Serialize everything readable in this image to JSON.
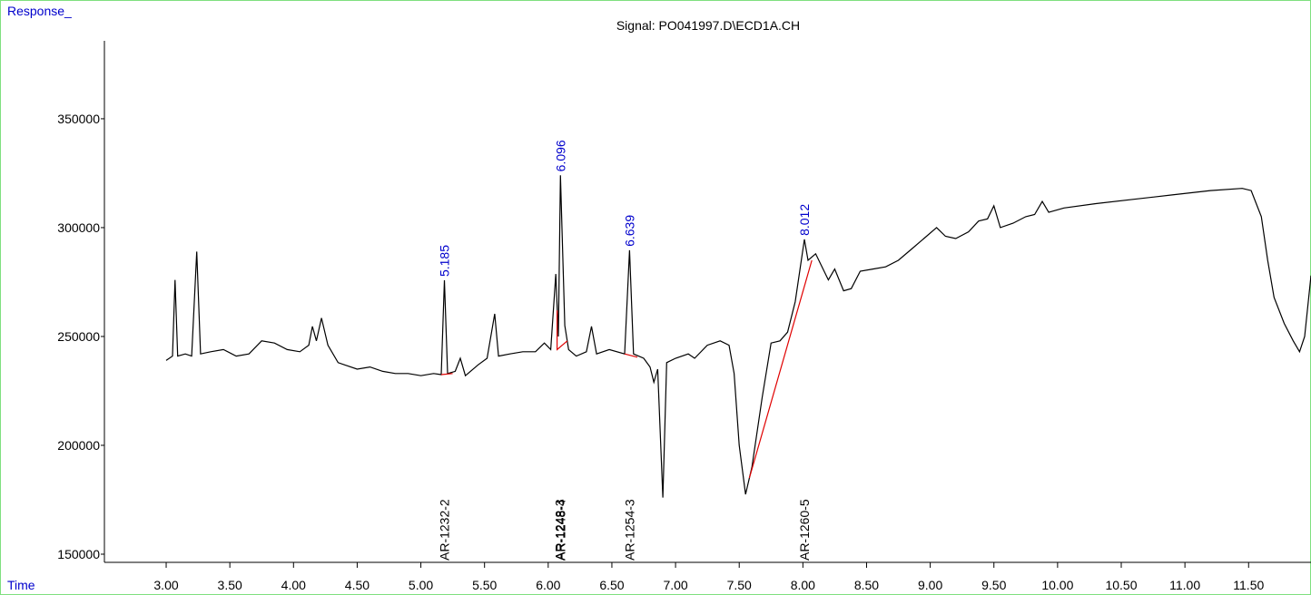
{
  "chart_data": {
    "type": "line",
    "title": "Signal: PO041997.D\\ECD1A.CH",
    "ylabel": "Response_",
    "xlabel": "Time",
    "xlim": [
      2.515,
      11.99
    ],
    "ylim": [
      146250,
      385800
    ],
    "xticks": [
      {
        "value": 3,
        "label": "3.00"
      },
      {
        "value": 3.5,
        "label": "3.50"
      },
      {
        "value": 4,
        "label": "4.00"
      },
      {
        "value": 4.5,
        "label": "4.50"
      },
      {
        "value": 5,
        "label": "5.00"
      },
      {
        "value": 5.5,
        "label": "5.50"
      },
      {
        "value": 6,
        "label": "6.00"
      },
      {
        "value": 6.5,
        "label": "6.50"
      },
      {
        "value": 7,
        "label": "7.00"
      },
      {
        "value": 7.5,
        "label": "7.50"
      },
      {
        "value": 8,
        "label": "8.00"
      },
      {
        "value": 8.5,
        "label": "8.50"
      },
      {
        "value": 9,
        "label": "9.00"
      },
      {
        "value": 9.5,
        "label": "9.50"
      },
      {
        "value": 10,
        "label": "10.00"
      },
      {
        "value": 10.5,
        "label": "10.50"
      },
      {
        "value": 11,
        "label": "11.00"
      },
      {
        "value": 11.5,
        "label": "11.50"
      }
    ],
    "yticks": [
      150000,
      200000,
      250000,
      300000,
      350000
    ],
    "series": [
      {
        "color": "#000000",
        "x": [
          3.0,
          3.05,
          3.07,
          3.09,
          3.15,
          3.2,
          3.24,
          3.27,
          3.35,
          3.45,
          3.55,
          3.65,
          3.75,
          3.85,
          3.95,
          4.05,
          4.12,
          4.148,
          4.18,
          4.22,
          4.27,
          4.35,
          4.5,
          4.6,
          4.7,
          4.8,
          4.9,
          5.0,
          5.1,
          5.16,
          5.185,
          5.21,
          5.27,
          5.31,
          5.35,
          5.45,
          5.52,
          5.58,
          5.61,
          5.7,
          5.8,
          5.9,
          5.97,
          6.02,
          6.06,
          6.08,
          6.096,
          6.13,
          6.16,
          6.22,
          6.3,
          6.34,
          6.38,
          6.48,
          6.6,
          6.639,
          6.67,
          6.75,
          6.8,
          6.83,
          6.86,
          6.9,
          6.93,
          7.0,
          7.1,
          7.15,
          7.25,
          7.35,
          7.42,
          7.46,
          7.5,
          7.55,
          7.6,
          7.68,
          7.75,
          7.82,
          7.88,
          7.94,
          8.012,
          8.04,
          8.1,
          8.15,
          8.2,
          8.25,
          8.32,
          8.38,
          8.45,
          8.55,
          8.65,
          8.75,
          8.85,
          8.95,
          9.05,
          9.12,
          9.2,
          9.3,
          9.38,
          9.45,
          9.5,
          9.55,
          9.65,
          9.75,
          9.82,
          9.88,
          9.93,
          10.05,
          10.3,
          10.6,
          10.9,
          11.2,
          11.45,
          11.52,
          11.6,
          11.65,
          11.7,
          11.78,
          11.85,
          11.9,
          11.94,
          11.99
        ],
        "values": [
          239000,
          241000,
          276000,
          241000,
          242000,
          241000,
          289000,
          242000,
          243000,
          244000,
          241000,
          242000,
          248000,
          247000,
          244000,
          243000,
          246000,
          254600,
          248000,
          258500,
          246000,
          238000,
          235000,
          236000,
          234000,
          233000,
          233000,
          232000,
          233000,
          232500,
          275800,
          233000,
          234000,
          240000,
          232000,
          237000,
          240000,
          260400,
          241000,
          242000,
          243000,
          243000,
          247000,
          244000,
          278700,
          250000,
          324000,
          255000,
          244000,
          241000,
          243000,
          254600,
          242000,
          244000,
          242000,
          289600,
          242000,
          240000,
          236000,
          229000,
          235000,
          176000,
          238000,
          240000,
          242000,
          240000,
          246000,
          248000,
          246000,
          233000,
          200000,
          177500,
          190000,
          222000,
          247000,
          248000,
          252000,
          266000,
          294600,
          285000,
          288000,
          282000,
          276000,
          281000,
          271000,
          272000,
          280000,
          281000,
          282000,
          285000,
          290000,
          295000,
          300000,
          296000,
          295000,
          298000,
          303000,
          304000,
          310000,
          300000,
          302000,
          305000,
          306000,
          312000,
          307000,
          309000,
          311000,
          313000,
          315000,
          317000,
          318000,
          317000,
          305000,
          285000,
          268000,
          256000,
          248000,
          243000,
          250000,
          278000
        ]
      }
    ],
    "baselines": {
      "color": "#e00000",
      "segments": [
        {
          "x": [
            5.16,
            5.25
          ],
          "values": [
            232500,
            233000
          ]
        },
        {
          "x": [
            6.07,
            6.07,
            6.15
          ],
          "values": [
            262000,
            244000,
            248000
          ]
        },
        {
          "x": [
            6.6,
            6.7
          ],
          "values": [
            242000,
            240500
          ]
        },
        {
          "x": [
            7.58,
            8.07
          ],
          "values": [
            185000,
            285000
          ]
        }
      ]
    },
    "peaks": [
      {
        "label": "5.185",
        "x": 5.185,
        "y": 275800
      },
      {
        "label": "6.096",
        "x": 6.096,
        "y": 324000
      },
      {
        "label": "6.639",
        "x": 6.639,
        "y": 289600
      },
      {
        "label": "8.012",
        "x": 8.012,
        "y": 294600
      }
    ],
    "compounds": [
      {
        "label": "AR-1232-2",
        "x": 5.185
      },
      {
        "label": "AR-1248-3",
        "x": 6.09
      },
      {
        "label": "AR-1248-4",
        "x": 6.096
      },
      {
        "label": "AR-1254-3",
        "x": 6.639
      },
      {
        "label": "AR-1260-5",
        "x": 8.012
      }
    ],
    "label_color": "#0000cc"
  }
}
